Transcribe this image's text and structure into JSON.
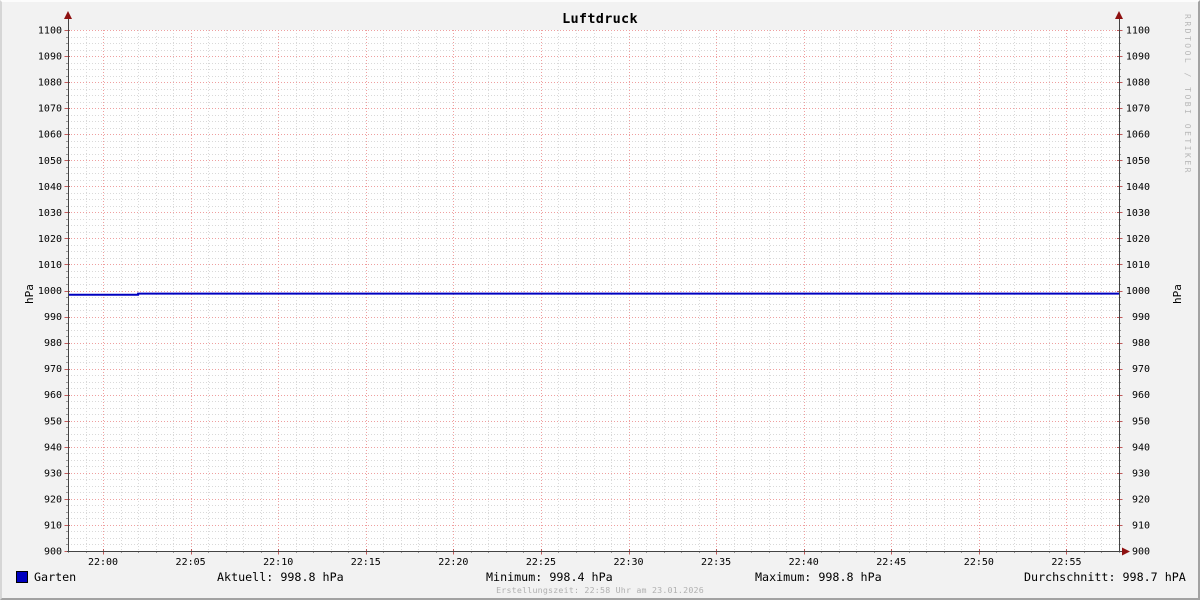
{
  "window": {
    "title": "Luftdruck"
  },
  "watermark": {
    "text": "RRDTOOL / TOBI OETIKER"
  },
  "footer": {
    "text": "Erstellungszeit: 22:58 Uhr am 23.01.2026"
  },
  "legend": {
    "series_label": "Garten",
    "swatch_color": "#0000c0"
  },
  "stats": {
    "current_text": "Aktuell: 998.8 hPa",
    "minimum_text": "Minimum: 998.4 hPa",
    "maximum_text": "Maximum: 998.8 hPa",
    "average_text": "Durchschnitt: 998.7 hPA"
  },
  "chart_data": {
    "type": "line",
    "title": "Luftdruck",
    "ylabel": "hPa",
    "ylabel_right": "hPa",
    "ylim": [
      900,
      1100
    ],
    "y_major_step": 10,
    "y_minor_step": 2.5,
    "x_range": [
      "21:58",
      "22:58"
    ],
    "x_major_ticks": [
      "22:00",
      "22:05",
      "22:10",
      "22:15",
      "22:20",
      "22:25",
      "22:30",
      "22:35",
      "22:40",
      "22:45",
      "22:50",
      "22:55"
    ],
    "x_minor_step_minutes": 1,
    "series": [
      {
        "name": "Garten",
        "color": "#0000c0",
        "points": [
          {
            "t": "21:58",
            "v": 998.4
          },
          {
            "t": "22:02",
            "v": 998.4
          },
          {
            "t": "22:02",
            "v": 998.8
          },
          {
            "t": "22:58",
            "v": 998.8
          }
        ]
      }
    ],
    "stats": {
      "aktuell": 998.8,
      "minimum": 998.4,
      "maximum": 998.8,
      "durchschnitt": 998.7,
      "unit": "hPa"
    },
    "grid": {
      "style": "dotted",
      "major_color": "#ef9f9f",
      "minor_color": "#d9d9d9",
      "canvas_color": "#ffffff",
      "background_color": "#f2f2f2"
    },
    "axis": {
      "line_color": "#444444",
      "arrow_color": "#8e1111",
      "tick_major_color": "#c05a5a",
      "tick_minor_color": "#9a9a9a",
      "label_color": "#000000"
    },
    "legend_position": "bottom"
  }
}
